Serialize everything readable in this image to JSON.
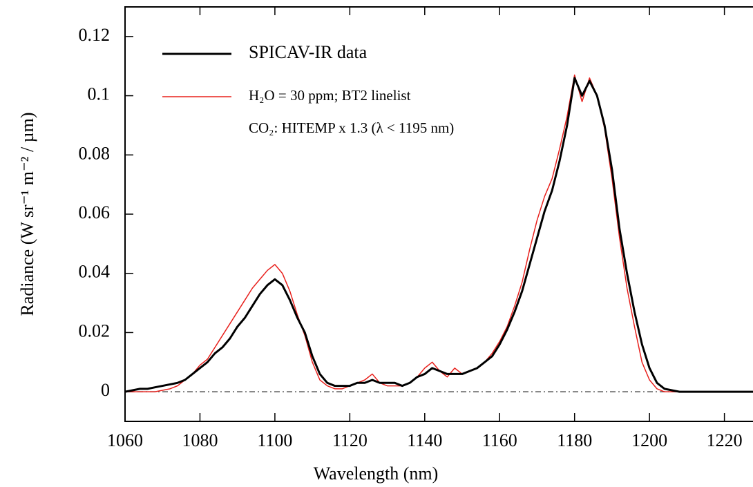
{
  "chart_data": {
    "type": "line",
    "x_label": "Wavelength (nm)",
    "y_label": "Radiance (W sr⁻¹ m⁻² / µm)",
    "annotation": "CO₂: HITEMP x 1.3 (λ < 1195 nm)",
    "x": [
      1060,
      1062,
      1064,
      1066,
      1068,
      1070,
      1072,
      1074,
      1076,
      1078,
      1080,
      1082,
      1084,
      1086,
      1088,
      1090,
      1092,
      1094,
      1096,
      1098,
      1100,
      1102,
      1104,
      1106,
      1108,
      1110,
      1112,
      1114,
      1116,
      1118,
      1120,
      1122,
      1124,
      1126,
      1128,
      1130,
      1132,
      1134,
      1136,
      1138,
      1140,
      1142,
      1144,
      1146,
      1148,
      1150,
      1152,
      1154,
      1156,
      1158,
      1160,
      1162,
      1164,
      1166,
      1168,
      1170,
      1172,
      1174,
      1176,
      1178,
      1180,
      1182,
      1184,
      1186,
      1188,
      1190,
      1192,
      1194,
      1196,
      1198,
      1200,
      1202,
      1204,
      1206,
      1208,
      1210,
      1212,
      1214,
      1216,
      1218,
      1220,
      1222,
      1224,
      1226,
      1228
    ],
    "series": [
      {
        "name": "SPICAV-IR data",
        "color": "#000000",
        "width": 3,
        "values": [
          0,
          0.0005,
          0.001,
          0.001,
          0.0015,
          0.002,
          0.0025,
          0.003,
          0.004,
          0.006,
          0.008,
          0.01,
          0.013,
          0.015,
          0.018,
          0.022,
          0.025,
          0.029,
          0.033,
          0.036,
          0.038,
          0.036,
          0.031,
          0.025,
          0.02,
          0.012,
          0.006,
          0.003,
          0.002,
          0.002,
          0.002,
          0.003,
          0.003,
          0.004,
          0.003,
          0.003,
          0.003,
          0.002,
          0.003,
          0.005,
          0.006,
          0.008,
          0.007,
          0.006,
          0.006,
          0.006,
          0.007,
          0.008,
          0.01,
          0.012,
          0.016,
          0.021,
          0.027,
          0.034,
          0.043,
          0.052,
          0.061,
          0.068,
          0.078,
          0.09,
          0.106,
          0.1,
          0.105,
          0.1,
          0.09,
          0.075,
          0.055,
          0.04,
          0.027,
          0.016,
          0.008,
          0.003,
          0.001,
          0.0005,
          0,
          0,
          0,
          0,
          0,
          0,
          0,
          0,
          0,
          0,
          0
        ]
      },
      {
        "name": "H₂O = 30 ppm; BT2 linelist",
        "color": "#e8201c",
        "width": 1.5,
        "values": [
          0,
          0,
          0,
          0,
          0,
          0.0005,
          0.001,
          0.002,
          0.004,
          0.006,
          0.009,
          0.011,
          0.015,
          0.019,
          0.023,
          0.027,
          0.031,
          0.035,
          0.038,
          0.041,
          0.043,
          0.04,
          0.034,
          0.026,
          0.019,
          0.01,
          0.004,
          0.002,
          0.001,
          0.001,
          0.002,
          0.003,
          0.004,
          0.006,
          0.003,
          0.002,
          0.002,
          0.002,
          0.003,
          0.005,
          0.008,
          0.01,
          0.007,
          0.005,
          0.008,
          0.006,
          0.007,
          0.008,
          0.01,
          0.013,
          0.017,
          0.022,
          0.029,
          0.037,
          0.048,
          0.058,
          0.066,
          0.072,
          0.082,
          0.093,
          0.107,
          0.098,
          0.106,
          0.1,
          0.089,
          0.072,
          0.052,
          0.035,
          0.022,
          0.01,
          0.004,
          0.001,
          0,
          0,
          0,
          0,
          0,
          0,
          0,
          0,
          0,
          0,
          0,
          0,
          0
        ]
      }
    ],
    "xlim": [
      1060,
      1228
    ],
    "ylim": [
      -0.01,
      0.13
    ],
    "xticks": [
      1060,
      1080,
      1100,
      1120,
      1140,
      1160,
      1180,
      1200,
      1220
    ],
    "yticks": [
      0,
      0.02,
      0.04,
      0.06,
      0.08,
      0.1,
      0.12
    ]
  }
}
